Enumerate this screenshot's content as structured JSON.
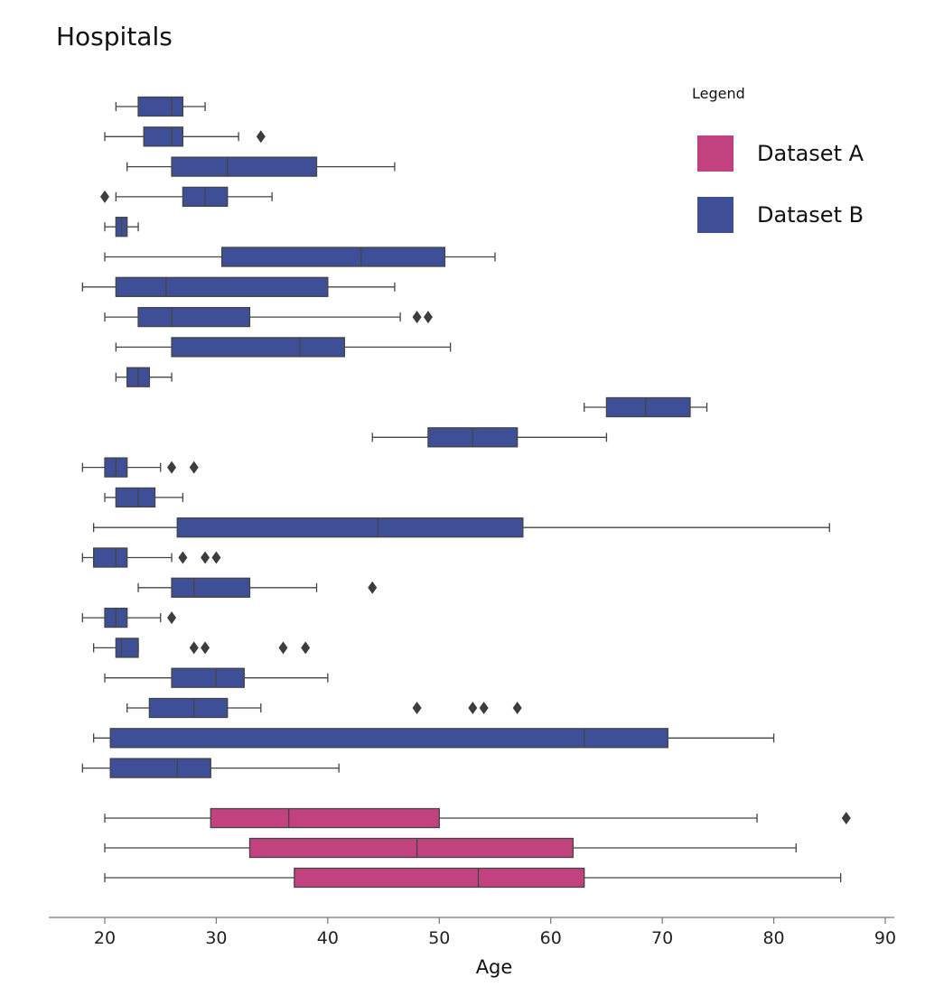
{
  "chart_data": {
    "type": "boxplot",
    "orientation": "horizontal",
    "title": "Hospitals",
    "xlabel": "Age",
    "ylabel": "",
    "xlim": [
      15,
      90
    ],
    "xticks": [
      20,
      30,
      40,
      50,
      60,
      70,
      80,
      90
    ],
    "legend": {
      "title": "Legend",
      "position": "top-right",
      "entries": [
        {
          "label": "Dataset A",
          "color": "#c2427f"
        },
        {
          "label": "Dataset B",
          "color": "#3f4f97"
        }
      ]
    },
    "series": [
      {
        "dataset": "Dataset B",
        "whisker_low": 21,
        "q1": 23,
        "median": 26,
        "q3": 27,
        "whisker_high": 29,
        "outliers": []
      },
      {
        "dataset": "Dataset B",
        "whisker_low": 20,
        "q1": 23.5,
        "median": 26,
        "q3": 27,
        "whisker_high": 32,
        "outliers": [
          34
        ]
      },
      {
        "dataset": "Dataset B",
        "whisker_low": 22,
        "q1": 26,
        "median": 31,
        "q3": 39,
        "whisker_high": 46,
        "outliers": []
      },
      {
        "dataset": "Dataset B",
        "whisker_low": 21,
        "q1": 27,
        "median": 29,
        "q3": 31,
        "whisker_high": 35,
        "outliers": [
          20
        ]
      },
      {
        "dataset": "Dataset B",
        "whisker_low": 20,
        "q1": 21,
        "median": 21.5,
        "q3": 22,
        "whisker_high": 23,
        "outliers": []
      },
      {
        "dataset": "Dataset B",
        "whisker_low": 20,
        "q1": 30.5,
        "median": 43,
        "q3": 50.5,
        "whisker_high": 55,
        "outliers": []
      },
      {
        "dataset": "Dataset B",
        "whisker_low": 18,
        "q1": 21,
        "median": 25.5,
        "q3": 40,
        "whisker_high": 46,
        "outliers": []
      },
      {
        "dataset": "Dataset B",
        "whisker_low": 20,
        "q1": 23,
        "median": 26,
        "q3": 33,
        "whisker_high": 46.5,
        "outliers": [
          48,
          49
        ]
      },
      {
        "dataset": "Dataset B",
        "whisker_low": 21,
        "q1": 26,
        "median": 37.5,
        "q3": 41.5,
        "whisker_high": 51,
        "outliers": []
      },
      {
        "dataset": "Dataset B",
        "whisker_low": 21,
        "q1": 22,
        "median": 23,
        "q3": 24,
        "whisker_high": 26,
        "outliers": []
      },
      {
        "dataset": "Dataset B",
        "whisker_low": 63,
        "q1": 65,
        "median": 68.5,
        "q3": 72.5,
        "whisker_high": 74,
        "outliers": []
      },
      {
        "dataset": "Dataset B",
        "whisker_low": 44,
        "q1": 49,
        "median": 53,
        "q3": 57,
        "whisker_high": 65,
        "outliers": []
      },
      {
        "dataset": "Dataset B",
        "whisker_low": 18,
        "q1": 20,
        "median": 21,
        "q3": 22,
        "whisker_high": 25,
        "outliers": [
          26,
          28
        ]
      },
      {
        "dataset": "Dataset B",
        "whisker_low": 20,
        "q1": 21,
        "median": 23,
        "q3": 24.5,
        "whisker_high": 27,
        "outliers": []
      },
      {
        "dataset": "Dataset B",
        "whisker_low": 19,
        "q1": 26.5,
        "median": 44.5,
        "q3": 57.5,
        "whisker_high": 85,
        "outliers": []
      },
      {
        "dataset": "Dataset B",
        "whisker_low": 18,
        "q1": 19,
        "median": 21,
        "q3": 22,
        "whisker_high": 26,
        "outliers": [
          27,
          29,
          30
        ]
      },
      {
        "dataset": "Dataset B",
        "whisker_low": 23,
        "q1": 26,
        "median": 28,
        "q3": 33,
        "whisker_high": 39,
        "outliers": [
          44
        ]
      },
      {
        "dataset": "Dataset B",
        "whisker_low": 18,
        "q1": 20,
        "median": 21,
        "q3": 22,
        "whisker_high": 25,
        "outliers": [
          26
        ]
      },
      {
        "dataset": "Dataset B",
        "whisker_low": 19,
        "q1": 21,
        "median": 21.5,
        "q3": 23,
        "whisker_high": 23,
        "outliers": [
          28,
          29,
          36,
          38
        ]
      },
      {
        "dataset": "Dataset B",
        "whisker_low": 20,
        "q1": 26,
        "median": 30,
        "q3": 32.5,
        "whisker_high": 40,
        "outliers": []
      },
      {
        "dataset": "Dataset B",
        "whisker_low": 22,
        "q1": 24,
        "median": 28,
        "q3": 31,
        "whisker_high": 34,
        "outliers": [
          48,
          53,
          54,
          57
        ]
      },
      {
        "dataset": "Dataset B",
        "whisker_low": 19,
        "q1": 20.5,
        "median": 63,
        "q3": 70.5,
        "whisker_high": 80,
        "outliers": []
      },
      {
        "dataset": "Dataset B",
        "whisker_low": 18,
        "q1": 20.5,
        "median": 26.5,
        "q3": 29.5,
        "whisker_high": 41,
        "outliers": []
      },
      {
        "dataset": "Dataset A",
        "whisker_low": 20,
        "q1": 29.5,
        "median": 36.5,
        "q3": 50,
        "whisker_high": 78.5,
        "outliers": [
          86.5
        ]
      },
      {
        "dataset": "Dataset A",
        "whisker_low": 20,
        "q1": 33,
        "median": 48,
        "q3": 62,
        "whisker_high": 82,
        "outliers": []
      },
      {
        "dataset": "Dataset A",
        "whisker_low": 20,
        "q1": 37,
        "median": 53.5,
        "q3": 63,
        "whisker_high": 86,
        "outliers": []
      }
    ]
  }
}
